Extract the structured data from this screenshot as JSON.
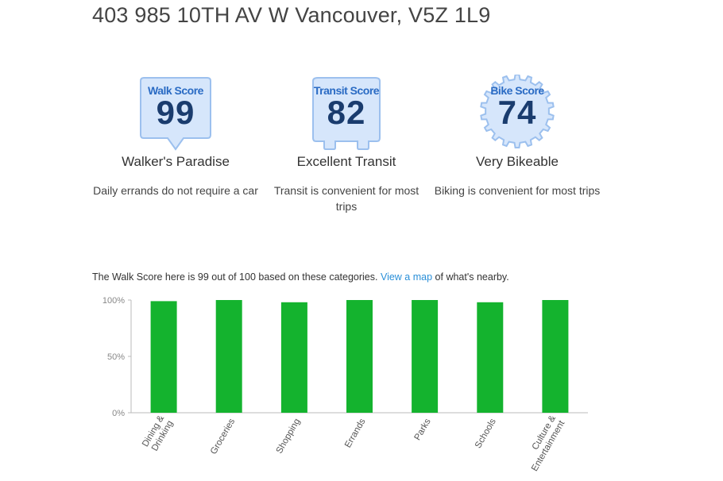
{
  "address": "403 985 10TH AV W Vancouver, V5Z 1L9",
  "scores": [
    {
      "badge_title": "Walk Score",
      "value": "99",
      "label": "Walker's Paradise",
      "detail": "Daily errands do not require a car"
    },
    {
      "badge_title": "Transit Score",
      "value": "82",
      "label": "Excellent Transit",
      "detail": "Transit is convenient for most trips"
    },
    {
      "badge_title": "Bike Score",
      "value": "74",
      "label": "Very Bikeable",
      "detail": "Biking is convenient for most trips"
    }
  ],
  "chart_intro": {
    "before": "The Walk Score here is 99 out of 100 based on these categories.",
    "link": "View a map",
    "after": "of what's nearby."
  },
  "colors": {
    "badge_fill": "#d6e6fb",
    "badge_stroke": "#9cc0ee",
    "badge_title": "#2a6bc4",
    "badge_value": "#1a3c6e",
    "bar": "#14b32e",
    "link": "#2a8fd8"
  },
  "chart_data": {
    "type": "bar",
    "title": "",
    "xlabel": "",
    "ylabel": "",
    "ylim": [
      0,
      100
    ],
    "yticks": [
      "0%",
      "50%",
      "100%"
    ],
    "categories": [
      "Dining & Drinking",
      "Groceries",
      "Shopping",
      "Errands",
      "Parks",
      "Schools",
      "Culture & Entertainment"
    ],
    "values": [
      99,
      100,
      98,
      100,
      100,
      98,
      100
    ],
    "grid": false,
    "legend": "none"
  }
}
